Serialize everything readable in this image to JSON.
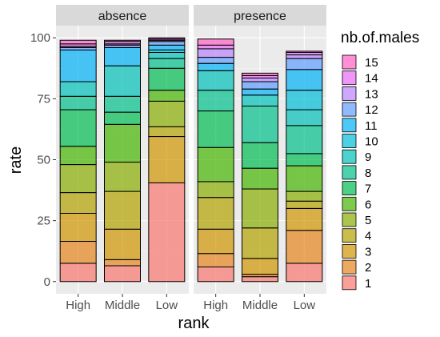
{
  "chart_data": {
    "type": "bar",
    "stacked": true,
    "facets": [
      "absence",
      "presence"
    ],
    "categories": [
      "High",
      "Middle",
      "Low"
    ],
    "xlabel": "rank",
    "ylabel": "rate",
    "ylim": [
      0,
      100
    ],
    "yticks": [
      0,
      25,
      50,
      75,
      100
    ],
    "grid": true,
    "legend": {
      "title": "nb.of.males",
      "position": "right"
    },
    "series": [
      {
        "name": "1",
        "color": "#F8766D",
        "absence": [
          7.5,
          6.5,
          40.5
        ],
        "presence": [
          6.0,
          2.0,
          7.5
        ]
      },
      {
        "name": "2",
        "color": "#E7851E",
        "absence": [
          9.0,
          2.5,
          0
        ],
        "presence": [
          5.5,
          1.0,
          13.5
        ]
      },
      {
        "name": "3",
        "color": "#D09400",
        "absence": [
          11.5,
          12.5,
          19.0
        ],
        "presence": [
          10.0,
          6.5,
          9.0
        ]
      },
      {
        "name": "4",
        "color": "#B2A100",
        "absence": [
          8.5,
          15.5,
          4.0
        ],
        "presence": [
          13.0,
          12.5,
          3.0
        ]
      },
      {
        "name": "5",
        "color": "#89AC00",
        "absence": [
          11.5,
          12.0,
          10.5
        ],
        "presence": [
          6.5,
          16.0,
          4.0
        ]
      },
      {
        "name": "6",
        "color": "#45B500",
        "absence": [
          7.5,
          15.5,
          4.5
        ],
        "presence": [
          14.0,
          8.5,
          10.5
        ]
      },
      {
        "name": "7",
        "color": "#00BC51",
        "absence": [
          15.0,
          5.0,
          9.0
        ],
        "presence": [
          15.0,
          10.5,
          5.0
        ]
      },
      {
        "name": "8",
        "color": "#00C08B",
        "absence": [
          5.5,
          6.5,
          4.0
        ],
        "presence": [
          8.5,
          15.0,
          11.5
        ]
      },
      {
        "name": "9",
        "color": "#00C0B8",
        "absence": [
          6.0,
          12.5,
          2.5
        ],
        "presence": [
          8.0,
          4.5,
          6.5
        ]
      },
      {
        "name": "10",
        "color": "#00BCD8",
        "absence": [
          0,
          0,
          1.0
        ],
        "presence": [
          0,
          0,
          8.0
        ]
      },
      {
        "name": "11",
        "color": "#00B0F6",
        "absence": [
          13.0,
          7.5,
          2.0
        ],
        "presence": [
          3.0,
          2.5,
          8.5
        ]
      },
      {
        "name": "12",
        "color": "#619CFF",
        "absence": [
          1.0,
          1.0,
          1.5
        ],
        "presence": [
          2.5,
          3.0,
          4.5
        ]
      },
      {
        "name": "13",
        "color": "#B983FF",
        "absence": [
          0.5,
          0.5,
          0.5
        ],
        "presence": [
          3.5,
          1.5,
          1.5
        ]
      },
      {
        "name": "14",
        "color": "#E76BF3",
        "absence": [
          1.0,
          1.0,
          0.5
        ],
        "presence": [
          1.5,
          1.0,
          1.0
        ]
      },
      {
        "name": "15",
        "color": "#FF61C3",
        "absence": [
          1.5,
          0.5,
          0.5
        ],
        "presence": [
          2.5,
          1.0,
          0.5
        ]
      }
    ]
  }
}
